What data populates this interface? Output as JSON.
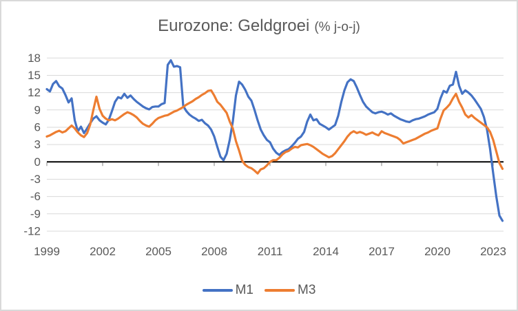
{
  "title": {
    "main": "Eurozone: Geldgroei",
    "suffix": "(% j-o-j)"
  },
  "colors": {
    "m1_blue": "#4472C4",
    "m3_orange": "#ED7D31",
    "text": "#595959",
    "gridline": "#D9D9D9",
    "zero_line": "#000000",
    "tick": "#808080",
    "frame_border": "#D9D9D9"
  },
  "chart_data": {
    "type": "line",
    "title": "Eurozone: Geldgroei (% j-o-j)",
    "grid": "horizontal",
    "legend_position": "bottom",
    "x_start_year": 1999,
    "points_per_year": 6,
    "x_axis": {
      "tick_years": [
        1999,
        2002,
        2005,
        2008,
        2011,
        2014,
        2017,
        2020,
        2023
      ],
      "tick_labels": [
        "1999",
        "2002",
        "2005",
        "2008",
        "2011",
        "2014",
        "2017",
        "2020",
        "2023"
      ]
    },
    "y_axis": {
      "min": -12,
      "max": 18,
      "ticks": [
        18,
        15,
        12,
        9,
        6,
        3,
        0,
        -3,
        -6,
        -9,
        -12
      ]
    },
    "series": [
      {
        "name": "M1",
        "color": "#4472C4",
        "values": [
          12.6,
          12.2,
          13.5,
          14.0,
          13.1,
          12.7,
          11.6,
          10.3,
          11.0,
          7.2,
          5.3,
          6.1,
          5.0,
          5.8,
          6.7,
          7.5,
          7.9,
          7.2,
          6.8,
          6.5,
          7.3,
          8.8,
          10.4,
          11.2,
          11.0,
          11.8,
          11.1,
          11.5,
          10.9,
          10.4,
          10.0,
          9.6,
          9.3,
          9.1,
          9.5,
          9.6,
          9.6,
          10.0,
          10.2,
          16.8,
          17.6,
          16.5,
          16.6,
          16.4,
          9.7,
          8.8,
          8.2,
          7.8,
          7.5,
          7.1,
          7.3,
          6.7,
          6.3,
          5.6,
          4.4,
          2.6,
          0.9,
          0.3,
          1.4,
          3.8,
          7.0,
          11.5,
          13.9,
          13.4,
          12.5,
          11.3,
          10.6,
          9.0,
          7.2,
          5.6,
          4.6,
          3.8,
          3.4,
          2.3,
          1.6,
          1.2,
          1.7,
          2.0,
          2.2,
          2.7,
          3.3,
          4.0,
          4.4,
          5.2,
          7.0,
          8.2,
          7.2,
          7.4,
          6.6,
          6.3,
          6.0,
          5.6,
          6.0,
          6.4,
          8.0,
          10.4,
          12.4,
          13.8,
          14.3,
          14.0,
          12.9,
          11.6,
          10.4,
          9.6,
          9.1,
          8.6,
          8.4,
          8.6,
          8.7,
          8.5,
          8.2,
          8.4,
          8.0,
          7.7,
          7.4,
          7.2,
          7.0,
          6.9,
          7.2,
          7.4,
          7.5,
          7.7,
          7.9,
          8.2,
          8.4,
          8.6,
          9.2,
          11.0,
          12.3,
          12.0,
          13.2,
          13.4,
          15.6,
          13.2,
          11.8,
          12.4,
          12.0,
          11.5,
          10.8,
          10.0,
          9.2,
          7.8,
          5.6,
          2.2,
          -2.0,
          -6.0,
          -9.3,
          -10.2
        ]
      },
      {
        "name": "M3",
        "color": "#ED7D31",
        "values": [
          4.4,
          4.6,
          4.9,
          5.2,
          5.4,
          5.1,
          5.3,
          5.8,
          6.3,
          5.8,
          5.1,
          4.6,
          4.3,
          5.0,
          6.5,
          9.0,
          11.3,
          9.2,
          8.0,
          7.5,
          7.2,
          7.4,
          7.2,
          7.5,
          7.9,
          8.3,
          8.6,
          8.4,
          8.1,
          7.7,
          7.1,
          6.6,
          6.3,
          6.1,
          6.6,
          7.2,
          7.6,
          7.8,
          8.0,
          8.1,
          8.4,
          8.7,
          8.9,
          9.2,
          9.5,
          9.9,
          10.2,
          10.5,
          10.9,
          11.2,
          11.6,
          11.9,
          12.3,
          12.4,
          11.5,
          10.4,
          9.9,
          9.2,
          8.5,
          7.0,
          5.8,
          3.6,
          2.0,
          0.2,
          -0.5,
          -0.9,
          -1.1,
          -1.5,
          -2.0,
          -1.3,
          -1.1,
          -0.6,
          0.0,
          0.3,
          0.3,
          0.7,
          1.3,
          1.7,
          1.9,
          2.3,
          2.6,
          2.5,
          2.9,
          3.0,
          3.1,
          2.9,
          2.6,
          2.2,
          1.8,
          1.4,
          1.1,
          0.8,
          1.0,
          1.5,
          2.2,
          2.9,
          3.6,
          4.4,
          5.0,
          5.3,
          5.0,
          5.2,
          5.0,
          4.7,
          4.9,
          5.1,
          4.8,
          4.6,
          5.3,
          5.0,
          4.8,
          4.6,
          4.4,
          4.2,
          3.8,
          3.2,
          3.4,
          3.6,
          3.8,
          4.0,
          4.3,
          4.6,
          4.9,
          5.1,
          5.4,
          5.6,
          5.8,
          7.5,
          8.9,
          9.4,
          10.0,
          11.0,
          11.8,
          10.4,
          9.4,
          8.2,
          7.7,
          8.1,
          7.6,
          7.2,
          6.8,
          6.4,
          6.0,
          5.2,
          3.8,
          1.8,
          -0.2,
          -1.2
        ]
      }
    ]
  }
}
